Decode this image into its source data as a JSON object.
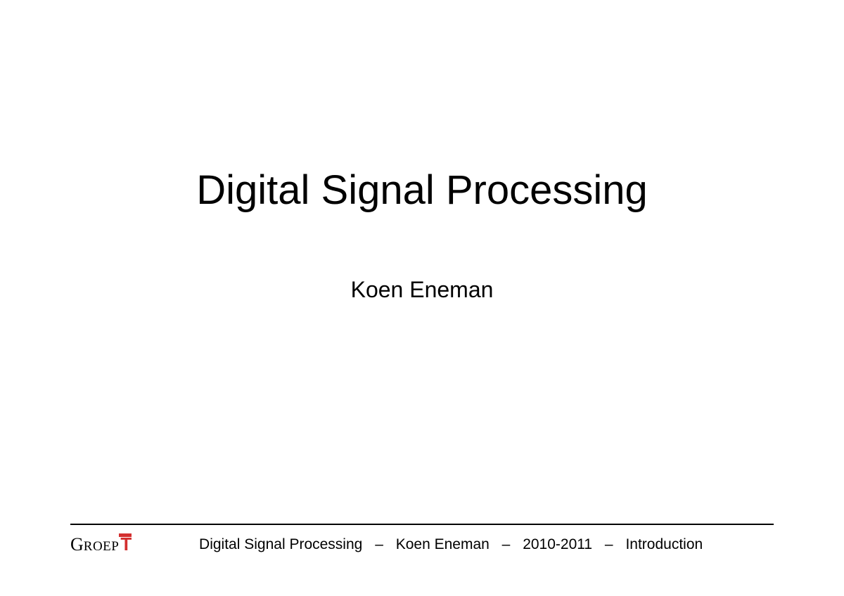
{
  "slide": {
    "title": "Digital Signal Processing",
    "author": "Koen Eneman",
    "title_fontsize": 58,
    "author_fontsize": 32,
    "title_color": "#000000",
    "author_color": "#000000",
    "background_color": "#ffffff"
  },
  "footer": {
    "course": "Digital Signal Processing",
    "author": "Koen Eneman",
    "year": "2010-2011",
    "section": "Introduction",
    "separator": "–",
    "fontsize": 21,
    "text_color": "#000000",
    "divider_color": "#000000"
  },
  "logo": {
    "text_part1": "G",
    "text_part2": "ROEP",
    "text_part3": "T",
    "part1_color": "#000000",
    "part2_color": "#000000",
    "part3_color": "#d32f2f"
  }
}
